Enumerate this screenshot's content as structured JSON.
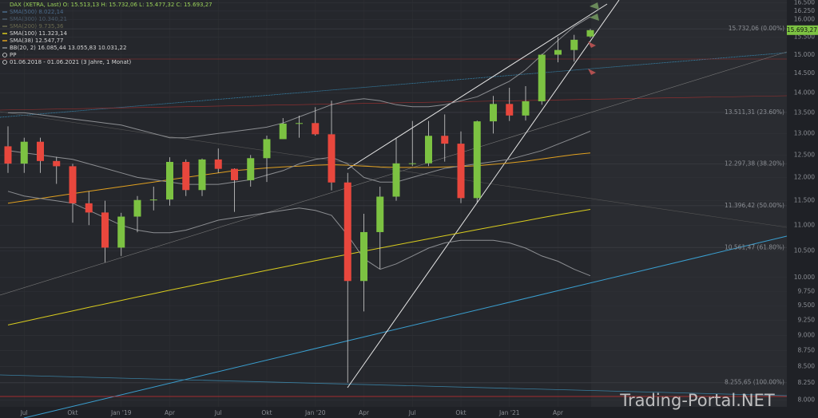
{
  "chart_data": {
    "type": "candlestick",
    "title": "DAX (XETRA, Last)  O: 15.513,13  H: 15.732,06  L: 15.477,32  C: 15.693,27",
    "date_range": "01.06.2018 - 01.06.2021  (3 Jahre, 1 Monat)",
    "pivot_label": "PP",
    "watermark": "Trading-Portal.NET",
    "log_scale": true,
    "grid": true,
    "up_color": "#7cc242",
    "down_color": "#e8473d",
    "categories": [
      null,
      "Jul",
      null,
      null,
      "Okt",
      null,
      null,
      "Jan '19",
      null,
      null,
      "Apr",
      null,
      null,
      "Jul",
      null,
      null,
      "Okt",
      null,
      null,
      "Jan '20",
      null,
      null,
      "Apr",
      null,
      null,
      "Jul",
      null,
      null,
      "Okt",
      null,
      null,
      "Jan '21",
      null,
      null,
      "Apr",
      null,
      null
    ],
    "open": [
      12700,
      12306,
      12806,
      12364,
      12247,
      11447,
      11257,
      10559,
      11173,
      11516,
      11526,
      12344,
      11727,
      12399,
      12189,
      11939,
      12428,
      12867,
      13236,
      13249,
      12981,
      11890,
      9936,
      10862,
      11587,
      12311,
      12313,
      12945,
      12761,
      11556,
      13291,
      13719,
      13433,
      13786,
      15008,
      15136,
      15513.13
    ],
    "high": [
      13170,
      12900,
      12900,
      12460,
      12300,
      11700,
      11500,
      11250,
      11600,
      11800,
      12450,
      12400,
      12420,
      12650,
      12200,
      12500,
      12950,
      13370,
      13430,
      13640,
      13800,
      12100,
      11230,
      11800,
      12900,
      13300,
      13300,
      13460,
      13050,
      13310,
      13920,
      14130,
      14170,
      15030,
      15500,
      15560,
      15732.06
    ],
    "low": [
      12100,
      12100,
      12100,
      11860,
      11050,
      11000,
      10280,
      10400,
      10860,
      11300,
      11400,
      11600,
      11600,
      12100,
      11270,
      11800,
      11900,
      12870,
      12900,
      12950,
      11720,
      8256,
      9400,
      10160,
      11500,
      12250,
      12250,
      12350,
      11450,
      11450,
      13000,
      13300,
      13310,
      13700,
      14800,
      14820,
      15477.32
    ],
    "close": [
      12306,
      12806,
      12364,
      12247,
      11447,
      11257,
      10559,
      11173,
      11516,
      11526,
      12344,
      11727,
      12399,
      12189,
      11939,
      12428,
      12867,
      13236,
      13249,
      12981,
      11890,
      9936,
      10862,
      11587,
      12311,
      12313,
      12945,
      12761,
      11556,
      13291,
      13719,
      13433,
      13786,
      15008,
      15136,
      15421,
      15693.27
    ],
    "last_price_label": "15.693,27",
    "series": [
      {
        "name": "SMA(100)  11.323,14",
        "color": "#d9cc1e",
        "values": [
          9170,
          9230,
          9290,
          9350,
          9410,
          9470,
          9530,
          9590,
          9650,
          9710,
          9770,
          9830,
          9890,
          9950,
          10010,
          10070,
          10130,
          10190,
          10250,
          10310,
          10370,
          10430,
          10490,
          10550,
          10610,
          10670,
          10730,
          10790,
          10850,
          10910,
          10970,
          11030,
          11090,
          11150,
          11210,
          11265,
          11320
        ]
      },
      {
        "name": "SMA(38)  12.547,77",
        "color": "#e0a020",
        "values": [
          11450,
          11500,
          11550,
          11600,
          11650,
          11700,
          11750,
          11800,
          11850,
          11900,
          11950,
          12000,
          12050,
          12100,
          12150,
          12180,
          12210,
          12230,
          12250,
          12270,
          12280,
          12270,
          12250,
          12230,
          12220,
          12220,
          12220,
          12230,
          12240,
          12260,
          12290,
          12320,
          12360,
          12410,
          12460,
          12510,
          12548
        ]
      },
      {
        "name": "BB(20, 2)  16.085,44  13.055,83  10.031,22",
        "color": "#8c8e92",
        "upper": [
          13500,
          13500,
          13450,
          13400,
          13350,
          13300,
          13250,
          13200,
          13100,
          13000,
          12900,
          12900,
          12950,
          13000,
          13050,
          13100,
          13150,
          13250,
          13400,
          13550,
          13700,
          13800,
          13850,
          13800,
          13700,
          13650,
          13650,
          13700,
          13800,
          13900,
          14100,
          14300,
          14600,
          15000,
          15400,
          15800,
          16085
        ],
        "values": [
          12600,
          12550,
          12500,
          12450,
          12400,
          12300,
          12200,
          12100,
          12000,
          11950,
          11900,
          11850,
          11850,
          11850,
          11900,
          11950,
          12050,
          12150,
          12300,
          12400,
          12450,
          12300,
          12000,
          11900,
          11900,
          12000,
          12100,
          12200,
          12250,
          12300,
          12350,
          12400,
          12500,
          12600,
          12750,
          12900,
          13055
        ],
        "lower": [
          11700,
          11600,
          11550,
          11500,
          11450,
          11300,
          11150,
          11000,
          10900,
          10850,
          10850,
          10900,
          11000,
          11100,
          11150,
          11200,
          11250,
          11300,
          11350,
          11300,
          11200,
          10800,
          10350,
          10150,
          10250,
          10400,
          10550,
          10650,
          10700,
          10700,
          10700,
          10650,
          10550,
          10400,
          10300,
          10150,
          10031
        ]
      }
    ],
    "legend_extra": [
      {
        "text": "SMA(500)  8.022,14",
        "color": "#4a6a8a"
      },
      {
        "text": "SMA(300)  10.340,21",
        "color": "#4a5a6a"
      },
      {
        "text": "SMA(200)  9.735,36",
        "color": "#6a6a50"
      }
    ],
    "fib_levels": [
      {
        "value": 15732.06,
        "label": "15.732,06 (0.00%)"
      },
      {
        "value": 13511.31,
        "label": "13.511,31 (23.60%)"
      },
      {
        "value": 12297.38,
        "label": "12.297,38 (38.20%)"
      },
      {
        "value": 11396.42,
        "label": "11.396,42 (50.00%)"
      },
      {
        "value": 10561.47,
        "label": "10.561,47 (61.80%)"
      },
      {
        "value": 8255.65,
        "label": "8.255,65 (100.00%)"
      }
    ],
    "ylim": [
      7900,
      16580
    ],
    "yticks": [
      {
        "value": 8000,
        "label": "8.000"
      },
      {
        "value": 8250,
        "label": "8.250"
      },
      {
        "value": 8500,
        "label": "8.500"
      },
      {
        "value": 8750,
        "label": "8.750"
      },
      {
        "value": 9000,
        "label": "9.000"
      },
      {
        "value": 9250,
        "label": "9.250"
      },
      {
        "value": 9500,
        "label": "9.500"
      },
      {
        "value": 9750,
        "label": "9.750"
      },
      {
        "value": 10000,
        "label": "10.000"
      },
      {
        "value": 10500,
        "label": "10.500"
      },
      {
        "value": 11000,
        "label": "11.000"
      },
      {
        "value": 11500,
        "label": "11.500"
      },
      {
        "value": 12000,
        "label": "12.000"
      },
      {
        "value": 12500,
        "label": "12.500"
      },
      {
        "value": 13000,
        "label": "13.000"
      },
      {
        "value": 13500,
        "label": "13.500"
      },
      {
        "value": 14000,
        "label": "14.000"
      },
      {
        "value": 14500,
        "label": "14.500"
      },
      {
        "value": 15000,
        "label": "15.000"
      },
      {
        "value": 15500,
        "label": "15.500"
      },
      {
        "value": 16000,
        "label": "16.000"
      },
      {
        "value": 16250,
        "label": "16.250"
      },
      {
        "value": 16500,
        "label": "16.500"
      }
    ]
  }
}
